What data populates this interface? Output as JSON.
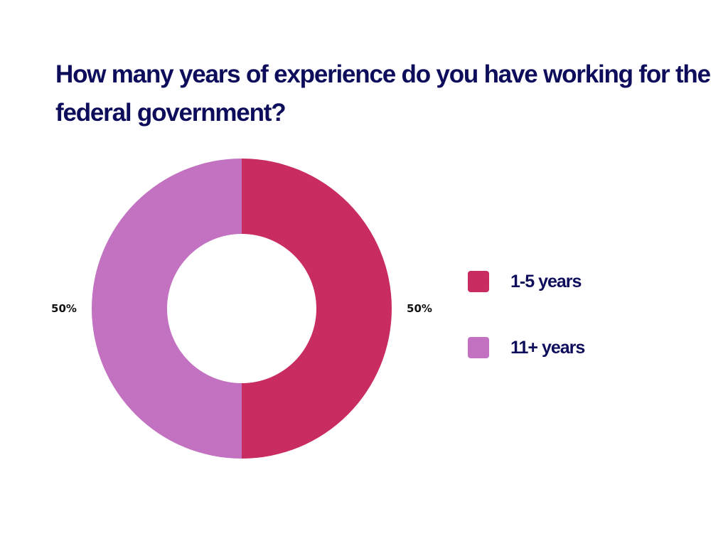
{
  "chart_data": {
    "type": "pie",
    "variant": "donut",
    "title": "How many years of experience do you have working for the federal government?",
    "categories": [
      "1-5 years",
      "11+ years"
    ],
    "values": [
      50,
      50
    ],
    "value_labels": [
      "50%",
      "50%"
    ],
    "colors": [
      "#c92c61",
      "#c272c1"
    ],
    "legend_position": "right"
  }
}
